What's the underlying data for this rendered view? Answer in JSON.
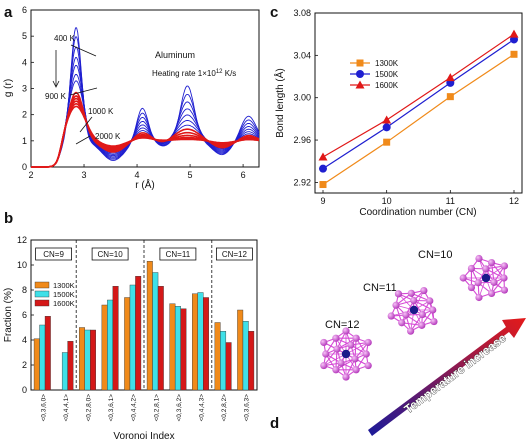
{
  "panels": {
    "a": {
      "letter": "a"
    },
    "b": {
      "letter": "b"
    },
    "c": {
      "letter": "c"
    },
    "d": {
      "letter": "d"
    }
  },
  "colors": {
    "blue": "#1f1fd0",
    "red": "#e01818",
    "orange": "#f08a1a",
    "cyan": "#3fe0e8",
    "darkred": "#d41818",
    "magenta": "#d64ad6",
    "navy": "#1a1a8a"
  },
  "chart_data": [
    {
      "panel": "a",
      "type": "line",
      "xlabel": "r (Å)",
      "ylabel": "g (r)",
      "xlim": [
        2,
        6.3
      ],
      "ylim": [
        0,
        6
      ],
      "xticks": [
        "2",
        "3",
        "4",
        "5",
        "6"
      ],
      "yticks": [
        "0",
        "1",
        "2",
        "3",
        "4",
        "5",
        "6"
      ],
      "title": "Aluminum",
      "subtitle": "Heating rate 1×10",
      "subtitle_exp": "12",
      "subtitle_unit": " K/s",
      "annotations": [
        "400 K",
        "900 K",
        "1000 K",
        "2000 K"
      ],
      "series_style": "blue curves from 400 K to 900 K; red curves from 1000 K to 2000 K",
      "first_peak_heights": [
        5.35,
        5.0,
        4.6,
        4.2,
        3.9,
        3.55,
        3.3,
        2.85,
        2.72,
        2.62,
        2.52,
        2.42,
        2.32
      ]
    },
    {
      "panel": "b",
      "type": "bar",
      "xlabel": "Voronoi Index",
      "ylabel": "Fraction (%)",
      "ylim": [
        0,
        12
      ],
      "yticks": [
        "0",
        "2",
        "4",
        "6",
        "8",
        "10",
        "12"
      ],
      "categories": [
        "<0,3,6,0>",
        "<0,4,4,1>",
        "<0,2,8,0>",
        "<0,3,6,1>",
        "<0,4,4,2>",
        "<0,2,8,1>",
        "<0,3,6,2>",
        "<0,4,4,3>",
        "<0,2,8,2>",
        "<0,3,6,3>"
      ],
      "groups": [
        {
          "label": "CN=9",
          "range": [
            0,
            1
          ]
        },
        {
          "label": "CN=10",
          "range": [
            2,
            4
          ]
        },
        {
          "label": "CN=11",
          "range": [
            5,
            7
          ]
        },
        {
          "label": "CN=12",
          "range": [
            8,
            9
          ]
        }
      ],
      "legend_position": "left",
      "series": [
        {
          "name": "1300K",
          "values": [
            4.1,
            0,
            5.0,
            6.8,
            7.4,
            10.3,
            6.9,
            7.7,
            5.4,
            6.4
          ]
        },
        {
          "name": "1500K",
          "values": [
            5.2,
            3.0,
            4.8,
            7.2,
            8.4,
            9.4,
            6.7,
            7.8,
            4.7,
            5.5
          ]
        },
        {
          "name": "1600K",
          "values": [
            5.9,
            3.9,
            4.8,
            8.3,
            9.1,
            8.3,
            6.5,
            7.4,
            3.8,
            4.7
          ]
        }
      ]
    },
    {
      "panel": "c",
      "type": "line",
      "xlabel": "Coordination number (CN)",
      "ylabel": "Bond length (Å)",
      "x": [
        9,
        10,
        11,
        12
      ],
      "xlim": [
        9,
        12
      ],
      "ylim": [
        2.91,
        3.08
      ],
      "xticks": [
        "9",
        "10",
        "11",
        "12"
      ],
      "yticks": [
        "2.92",
        "2.96",
        "3.00",
        "3.04",
        "3.08"
      ],
      "legend_position": "upper-left",
      "series": [
        {
          "name": "1300K",
          "marker": "square",
          "values": [
            2.918,
            2.958,
            3.001,
            3.041
          ]
        },
        {
          "name": "1500K",
          "marker": "circle",
          "values": [
            2.933,
            2.972,
            3.014,
            3.055
          ]
        },
        {
          "name": "1600K",
          "marker": "triangle",
          "values": [
            2.944,
            2.979,
            3.019,
            3.06
          ]
        }
      ]
    }
  ],
  "diagram_d": {
    "clusters": [
      "CN=10",
      "CN=11",
      "CN=12"
    ],
    "arrow_label": "Temperature increase"
  }
}
